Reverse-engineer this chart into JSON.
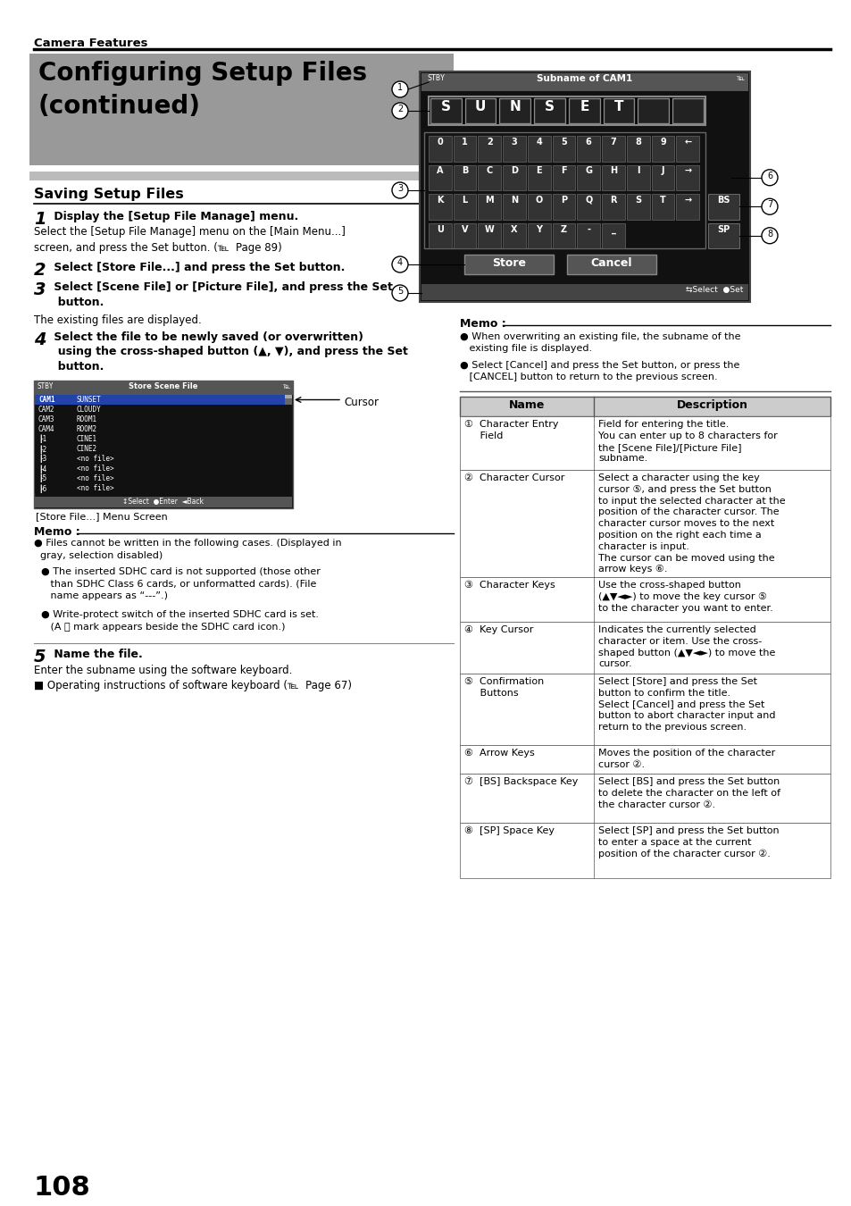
{
  "page_bg": "#ffffff",
  "header_text": "Camera Features",
  "title_text_line1": "Configuring Setup Files",
  "title_text_line2": "(continued)",
  "title_bg": "#999999",
  "section_bar_color": "#aaaaaa",
  "section_title": "Saving Setup Files",
  "memo_left_title": "Memo :",
  "memo_right_title": "Memo :",
  "memo_right_items": [
    "● When overwriting an existing file, the subname of the\n   existing file is displayed.",
    "● Select [Cancel] and press the Set button, or press the\n   [CANCEL] button to return to the previous screen."
  ],
  "table_headers": [
    "Name",
    "Description"
  ],
  "table_rows": [
    {
      "name": "①  Character Entry\n     Field",
      "desc": "Field for entering the title.\nYou can enter up to 8 characters for\nthe [Scene File]/[Picture File]\nsubname."
    },
    {
      "name": "②  Character Cursor",
      "desc": "Select a character using the key\ncursor ⑤, and press the Set button\nto input the selected character at the\nposition of the character cursor. The\ncharacter cursor moves to the next\nposition on the right each time a\ncharacter is input.\nThe cursor can be moved using the\narrow keys ⑥."
    },
    {
      "name": "③  Character Keys",
      "desc": "Use the cross-shaped button\n(▲▼◄►) to move the key cursor ⑤\nto the character you want to enter."
    },
    {
      "name": "④  Key Cursor",
      "desc": "Indicates the currently selected\ncharacter or item. Use the cross-\nshaped button (▲▼◄►) to move the\ncursor."
    },
    {
      "name": "⑤  Confirmation\n     Buttons",
      "desc": "Select [Store] and press the Set\nbutton to confirm the title.\nSelect [Cancel] and press the Set\nbutton to abort character input and\nreturn to the previous screen."
    },
    {
      "name": "⑥  Arrow Keys",
      "desc": "Moves the position of the character\ncursor ②."
    },
    {
      "name": "⑦  [BS] Backspace Key",
      "desc": "Select [BS] and press the Set button\nto delete the character on the left of\nthe character cursor ②."
    },
    {
      "name": "⑧  [SP] Space Key",
      "desc": "Select [SP] and press the Set button\nto enter a space at the current\nposition of the character cursor ②."
    }
  ],
  "page_number": "108",
  "ss_rows": [
    [
      "CAM1",
      "SUNSET",
      true
    ],
    [
      "CAM2",
      "CLOUDY",
      false
    ],
    [
      "CAM3",
      "ROOM1",
      false
    ],
    [
      "CAM4",
      "ROOM2",
      false
    ],
    [
      "┠1",
      "CINE1",
      false
    ],
    [
      "┠2",
      "CINE2",
      false
    ],
    [
      "┠3",
      "<no file>",
      false
    ],
    [
      "┠4",
      "<no file>",
      false
    ],
    [
      "┠5",
      "<no file>",
      false
    ],
    [
      "┠6",
      "<no file>",
      false
    ]
  ]
}
